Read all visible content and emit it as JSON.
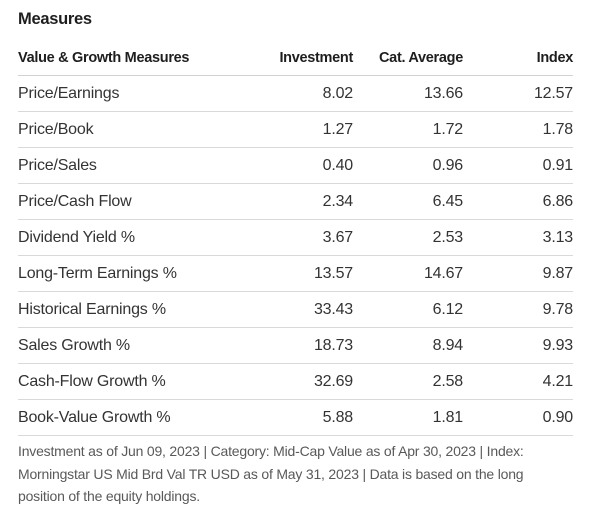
{
  "section_title": "Measures",
  "table": {
    "headers": [
      "Value & Growth Measures",
      "Investment",
      "Cat. Average",
      "Index"
    ],
    "rows": [
      [
        "Price/Earnings",
        "8.02",
        "13.66",
        "12.57"
      ],
      [
        "Price/Book",
        "1.27",
        "1.72",
        "1.78"
      ],
      [
        "Price/Sales",
        "0.40",
        "0.96",
        "0.91"
      ],
      [
        "Price/Cash Flow",
        "2.34",
        "6.45",
        "6.86"
      ],
      [
        "Dividend Yield %",
        "3.67",
        "2.53",
        "3.13"
      ],
      [
        "Long-Term Earnings %",
        "13.57",
        "14.67",
        "9.87"
      ],
      [
        "Historical Earnings %",
        "33.43",
        "6.12",
        "9.78"
      ],
      [
        "Sales Growth %",
        "18.73",
        "8.94",
        "9.93"
      ],
      [
        "Cash-Flow Growth %",
        "32.69",
        "2.58",
        "4.21"
      ],
      [
        "Book-Value Growth %",
        "5.88",
        "1.81",
        "0.90"
      ]
    ]
  },
  "footnote": "Investment as of Jun 09, 2023 | Category: Mid-Cap Value as of Apr 30, 2023 | Index: Morningstar US Mid Brd Val TR USD as of May 31, 2023 | Data is based on the long position of the equity holdings."
}
